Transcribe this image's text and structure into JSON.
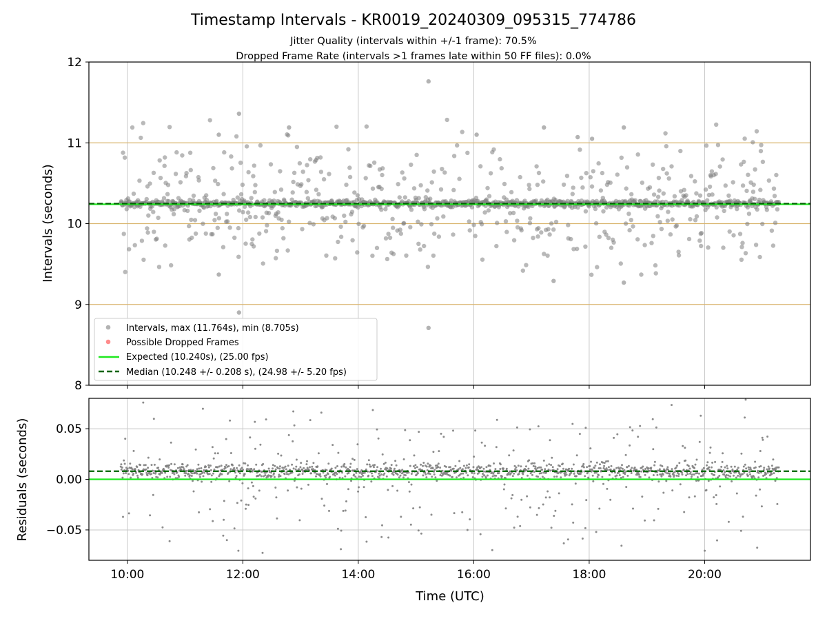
{
  "colors": {
    "intervals": "#808080",
    "dropped": "#ff4040",
    "expected": "#1ee81e",
    "median": "#006400",
    "hline": "#d9b56e",
    "grid": "#c8c8c8"
  },
  "chart_data": [
    {
      "type": "scatter",
      "title": "Timestamp Intervals - KR0019_20240309_095315_774786",
      "subtitle_lines": [
        "Jitter Quality (intervals within +/-1 frame): 70.5%",
        "Dropped Frame Rate (intervals >1 frames late within 50 FF files): 0.0%"
      ],
      "ylabel": "Intervals (seconds)",
      "xlabel": "",
      "xlim": [
        "09:20",
        "21:50"
      ],
      "ylim": [
        8,
        12
      ],
      "yticks": [
        8,
        9,
        10,
        11,
        12
      ],
      "ytick_labels": [
        "8",
        "9",
        "10",
        "11",
        "12"
      ],
      "horizontal_lines": [
        9,
        10,
        11
      ],
      "grid": "vertical",
      "legend_position": "lower-left",
      "legend": [
        {
          "name": "Intervals, max (11.764s), min (8.705s)",
          "marker": "circle",
          "color": "#808080"
        },
        {
          "name": "Possible Dropped Frames",
          "marker": "circle",
          "color": "#ff4040"
        },
        {
          "name": "Expected (10.240s), (25.00 fps)",
          "marker": "solid-line",
          "color": "#1ee81e"
        },
        {
          "name": "Median (10.248 +/- 0.208 s), (24.98 +/- 5.20 fps)",
          "marker": "dashed-line",
          "color": "#006400"
        }
      ],
      "time_range": [
        "09:53",
        "21:17"
      ],
      "expected": 10.24,
      "median": 10.248,
      "median_std": 0.208,
      "max": 11.764,
      "min": 8.705,
      "dropped_frames": [],
      "outliers": [
        {
          "x": "15:13",
          "y": 11.76
        },
        {
          "x": "15:13",
          "y": 8.71
        },
        {
          "x": "11:56",
          "y": 11.36
        },
        {
          "x": "11:56",
          "y": 8.9
        },
        {
          "x": "12:48",
          "y": 11.19
        },
        {
          "x": "17:13",
          "y": 11.19
        },
        {
          "x": "18:36",
          "y": 11.19
        },
        {
          "x": "11:35",
          "y": 11.1
        },
        {
          "x": "16:03",
          "y": 11.1
        },
        {
          "x": "17:48",
          "y": 11.07
        },
        {
          "x": "18:03",
          "y": 11.05
        },
        {
          "x": "18:36",
          "y": 9.27
        },
        {
          "x": "17:23",
          "y": 9.29
        },
        {
          "x": "11:35",
          "y": 9.37
        }
      ]
    },
    {
      "type": "scatter",
      "ylabel": "Residuals (seconds)",
      "xlabel": "Time (UTC)",
      "xlim": [
        "09:20",
        "21:50"
      ],
      "ylim": [
        -0.08,
        0.08
      ],
      "yticks": [
        -0.05,
        0.0,
        0.05
      ],
      "ytick_labels": [
        "−0.05",
        "0.00",
        "0.05"
      ],
      "xticks": [
        "10:00",
        "12:00",
        "14:00",
        "16:00",
        "18:00",
        "20:00"
      ],
      "grid": "both",
      "expected_residual": 0.0,
      "median_residual": 0.008
    }
  ]
}
